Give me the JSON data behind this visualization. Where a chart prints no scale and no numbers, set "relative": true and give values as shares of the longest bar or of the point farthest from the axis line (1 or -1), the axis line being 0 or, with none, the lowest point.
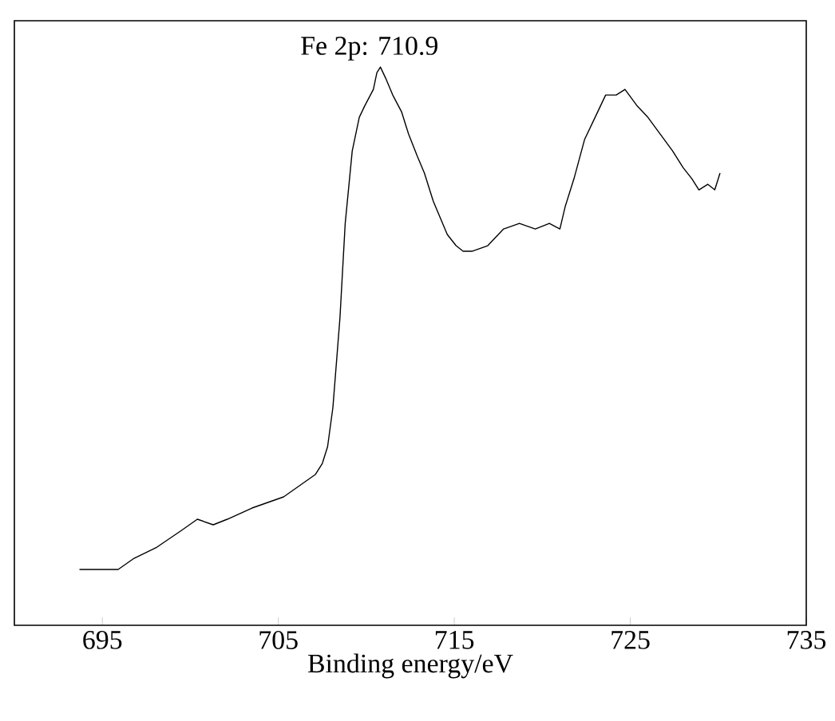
{
  "chart_data": {
    "type": "line",
    "relative": true,
    "xlabel": "Binding energy/eV",
    "xlim": [
      690,
      735
    ],
    "xticks": [
      695,
      705,
      715,
      725,
      735
    ],
    "grid": false,
    "marker": "none",
    "line_style": "solid",
    "annotations": [
      {
        "text": "Fe 2p: 710.9",
        "x": 710.9,
        "y": 1
      }
    ],
    "series": [
      {
        "color": "#000000",
        "x": [
          693.7,
          694.6,
          695.9,
          696.8,
          698.1,
          699.5,
          700.4,
          701.3,
          702.1,
          703.5,
          704.4,
          705.3,
          706.2,
          707.1,
          707.5,
          707.8,
          708.1,
          708.5,
          708.8,
          709.2,
          709.6,
          709.9,
          710.4,
          710.6,
          710.8,
          711.1,
          711.5,
          712.0,
          712.4,
          712.9,
          713.3,
          713.8,
          714.2,
          714.6,
          715.1,
          715.5,
          716.0,
          716.9,
          717.8,
          718.7,
          719.6,
          720.4,
          721.0,
          721.3,
          721.8,
          722.4,
          723.0,
          723.6,
          724.2,
          724.7,
          725.4,
          726.0,
          726.7,
          727.4,
          728.0,
          728.5,
          728.9,
          729.4,
          729.8,
          730.1
        ],
        "values": [
          0.1,
          0.1,
          0.1,
          0.12,
          0.14,
          0.17,
          0.19,
          0.18,
          0.19,
          0.21,
          0.22,
          0.23,
          0.25,
          0.27,
          0.29,
          0.32,
          0.39,
          0.55,
          0.72,
          0.85,
          0.91,
          0.93,
          0.96,
          0.99,
          1.0,
          0.98,
          0.95,
          0.92,
          0.88,
          0.84,
          0.81,
          0.76,
          0.73,
          0.7,
          0.68,
          0.67,
          0.67,
          0.68,
          0.71,
          0.72,
          0.71,
          0.72,
          0.71,
          0.75,
          0.8,
          0.87,
          0.91,
          0.95,
          0.95,
          0.96,
          0.93,
          0.91,
          0.88,
          0.85,
          0.82,
          0.8,
          0.78,
          0.79,
          0.78,
          0.81
        ]
      }
    ]
  }
}
